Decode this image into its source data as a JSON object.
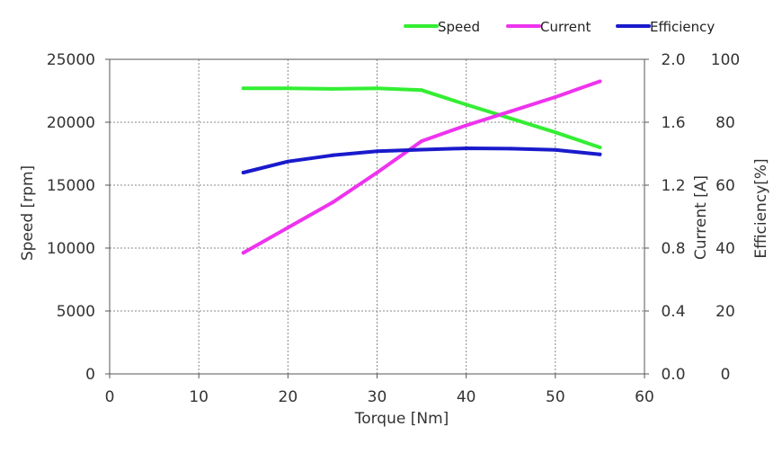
{
  "chart_data": {
    "type": "line",
    "xlabel": "Torque [Nm]",
    "x_ticks": [
      "0",
      "10",
      "20",
      "30",
      "40",
      "50",
      "60"
    ],
    "xlim": [
      0,
      60
    ],
    "grid": true,
    "legend_position": "top-right",
    "axes": {
      "speed": {
        "label": "Speed [rpm]",
        "ylim": [
          0,
          25000
        ],
        "ticks": [
          "0",
          "5000",
          "10000",
          "15000",
          "20000",
          "25000"
        ]
      },
      "current": {
        "label": "Current [A]",
        "ylim": [
          0.0,
          2.0
        ],
        "ticks": [
          "0.0",
          "0.4",
          "0.8",
          "1.2",
          "1.6",
          "2.0"
        ]
      },
      "efficiency": {
        "label": "Efficiency[%]",
        "ylim": [
          0,
          100
        ],
        "ticks": [
          "0",
          "20",
          "40",
          "60",
          "80",
          "100"
        ]
      }
    },
    "series": [
      {
        "name": "Speed",
        "axis": "speed",
        "color": "#33ee33",
        "x": [
          15,
          20,
          25,
          30,
          35,
          40,
          45,
          50,
          55
        ],
        "values": [
          22700,
          22700,
          22650,
          22700,
          22550,
          21400,
          20300,
          19200,
          18000
        ]
      },
      {
        "name": "Current",
        "axis": "current",
        "color": "#ee33ee",
        "x": [
          15,
          20,
          25,
          30,
          35,
          40,
          45,
          50,
          55
        ],
        "values": [
          0.77,
          0.93,
          1.09,
          1.28,
          1.48,
          1.58,
          1.67,
          1.76,
          1.86
        ]
      },
      {
        "name": "Efficiency",
        "axis": "efficiency",
        "color": "#1a1acc",
        "x": [
          15,
          20,
          25,
          30,
          35,
          40,
          45,
          50,
          55
        ],
        "values": [
          64,
          67.5,
          69.5,
          70.8,
          71.3,
          71.7,
          71.6,
          71.2,
          69.8
        ]
      }
    ]
  }
}
